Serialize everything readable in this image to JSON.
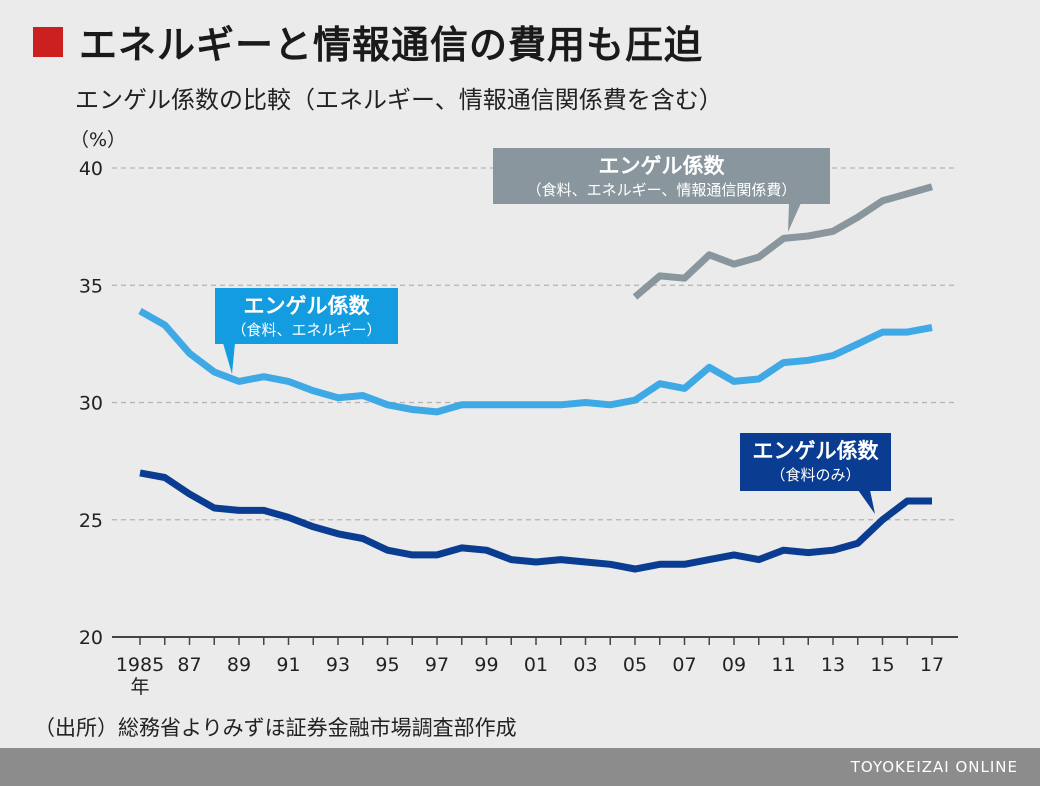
{
  "header": {
    "title": "エネルギーと情報通信の費用も圧迫",
    "subtitle": "エンゲル係数の比較（エネルギー、情報通信関係費を含む）"
  },
  "footer": {
    "source": "（出所）総務省よりみずほ証券金融市場調査部作成",
    "brand": "TOYOKEIZAI ONLINE"
  },
  "colors": {
    "title_mark": "#cc1f1f",
    "background": "#ebebeb",
    "footer": "#8c8c8c"
  },
  "chart_data": {
    "type": "line",
    "yunit": "（%）",
    "xunit": "年",
    "ylim": [
      20,
      40
    ],
    "yticks": [
      20,
      25,
      30,
      35,
      40
    ],
    "grid": true,
    "xlim": [
      1985,
      2017
    ],
    "xtick_labels": [
      {
        "year": 1985,
        "label": "1985"
      },
      {
        "year": 1987,
        "label": "87"
      },
      {
        "year": 1989,
        "label": "89"
      },
      {
        "year": 1991,
        "label": "91"
      },
      {
        "year": 1993,
        "label": "93"
      },
      {
        "year": 1995,
        "label": "95"
      },
      {
        "year": 1997,
        "label": "97"
      },
      {
        "year": 1999,
        "label": "99"
      },
      {
        "year": 2001,
        "label": "01"
      },
      {
        "year": 2003,
        "label": "03"
      },
      {
        "year": 2005,
        "label": "05"
      },
      {
        "year": 2007,
        "label": "07"
      },
      {
        "year": 2009,
        "label": "09"
      },
      {
        "year": 2011,
        "label": "11"
      },
      {
        "year": 2013,
        "label": "13"
      },
      {
        "year": 2015,
        "label": "15"
      },
      {
        "year": 2017,
        "label": "17"
      }
    ],
    "series": [
      {
        "name": "エンゲル係数",
        "sublabel": "（食料、エネルギー、情報通信関係費）",
        "color": "#8a969e",
        "label_box_color": "#8a969e",
        "x": [
          2005,
          2006,
          2007,
          2008,
          2009,
          2010,
          2011,
          2012,
          2013,
          2014,
          2015,
          2016,
          2017
        ],
        "values": [
          34.5,
          35.4,
          35.3,
          36.3,
          35.9,
          36.2,
          37.0,
          37.1,
          37.3,
          37.9,
          38.6,
          38.9,
          39.2
        ]
      },
      {
        "name": "エンゲル係数",
        "sublabel": "（食料、エネルギー）",
        "color": "#3fa9e6",
        "label_box_color": "#149ce0",
        "x": [
          1985,
          1986,
          1987,
          1988,
          1989,
          1990,
          1991,
          1992,
          1993,
          1994,
          1995,
          1996,
          1997,
          1998,
          1999,
          2000,
          2001,
          2002,
          2003,
          2004,
          2005,
          2006,
          2007,
          2008,
          2009,
          2010,
          2011,
          2012,
          2013,
          2014,
          2015,
          2016,
          2017
        ],
        "values": [
          33.9,
          33.3,
          32.1,
          31.3,
          30.9,
          31.1,
          30.9,
          30.5,
          30.2,
          30.3,
          29.9,
          29.7,
          29.6,
          29.9,
          29.9,
          29.9,
          29.9,
          29.9,
          30.0,
          29.9,
          30.1,
          30.8,
          30.6,
          31.5,
          30.9,
          31.0,
          31.7,
          31.8,
          32.0,
          32.5,
          33.0,
          33.0,
          33.2
        ]
      },
      {
        "name": "エンゲル係数",
        "sublabel": "（食料のみ）",
        "color": "#0a3d91",
        "label_box_color": "#0a3d91",
        "x": [
          1985,
          1986,
          1987,
          1988,
          1989,
          1990,
          1991,
          1992,
          1993,
          1994,
          1995,
          1996,
          1997,
          1998,
          1999,
          2000,
          2001,
          2002,
          2003,
          2004,
          2005,
          2006,
          2007,
          2008,
          2009,
          2010,
          2011,
          2012,
          2013,
          2014,
          2015,
          2016,
          2017
        ],
        "values": [
          27.0,
          26.8,
          26.1,
          25.5,
          25.4,
          25.4,
          25.1,
          24.7,
          24.4,
          24.2,
          23.7,
          23.5,
          23.5,
          23.8,
          23.7,
          23.3,
          23.2,
          23.3,
          23.2,
          23.1,
          22.9,
          23.1,
          23.1,
          23.3,
          23.5,
          23.3,
          23.7,
          23.6,
          23.7,
          24.0,
          25.0,
          25.8,
          25.8
        ]
      }
    ]
  }
}
